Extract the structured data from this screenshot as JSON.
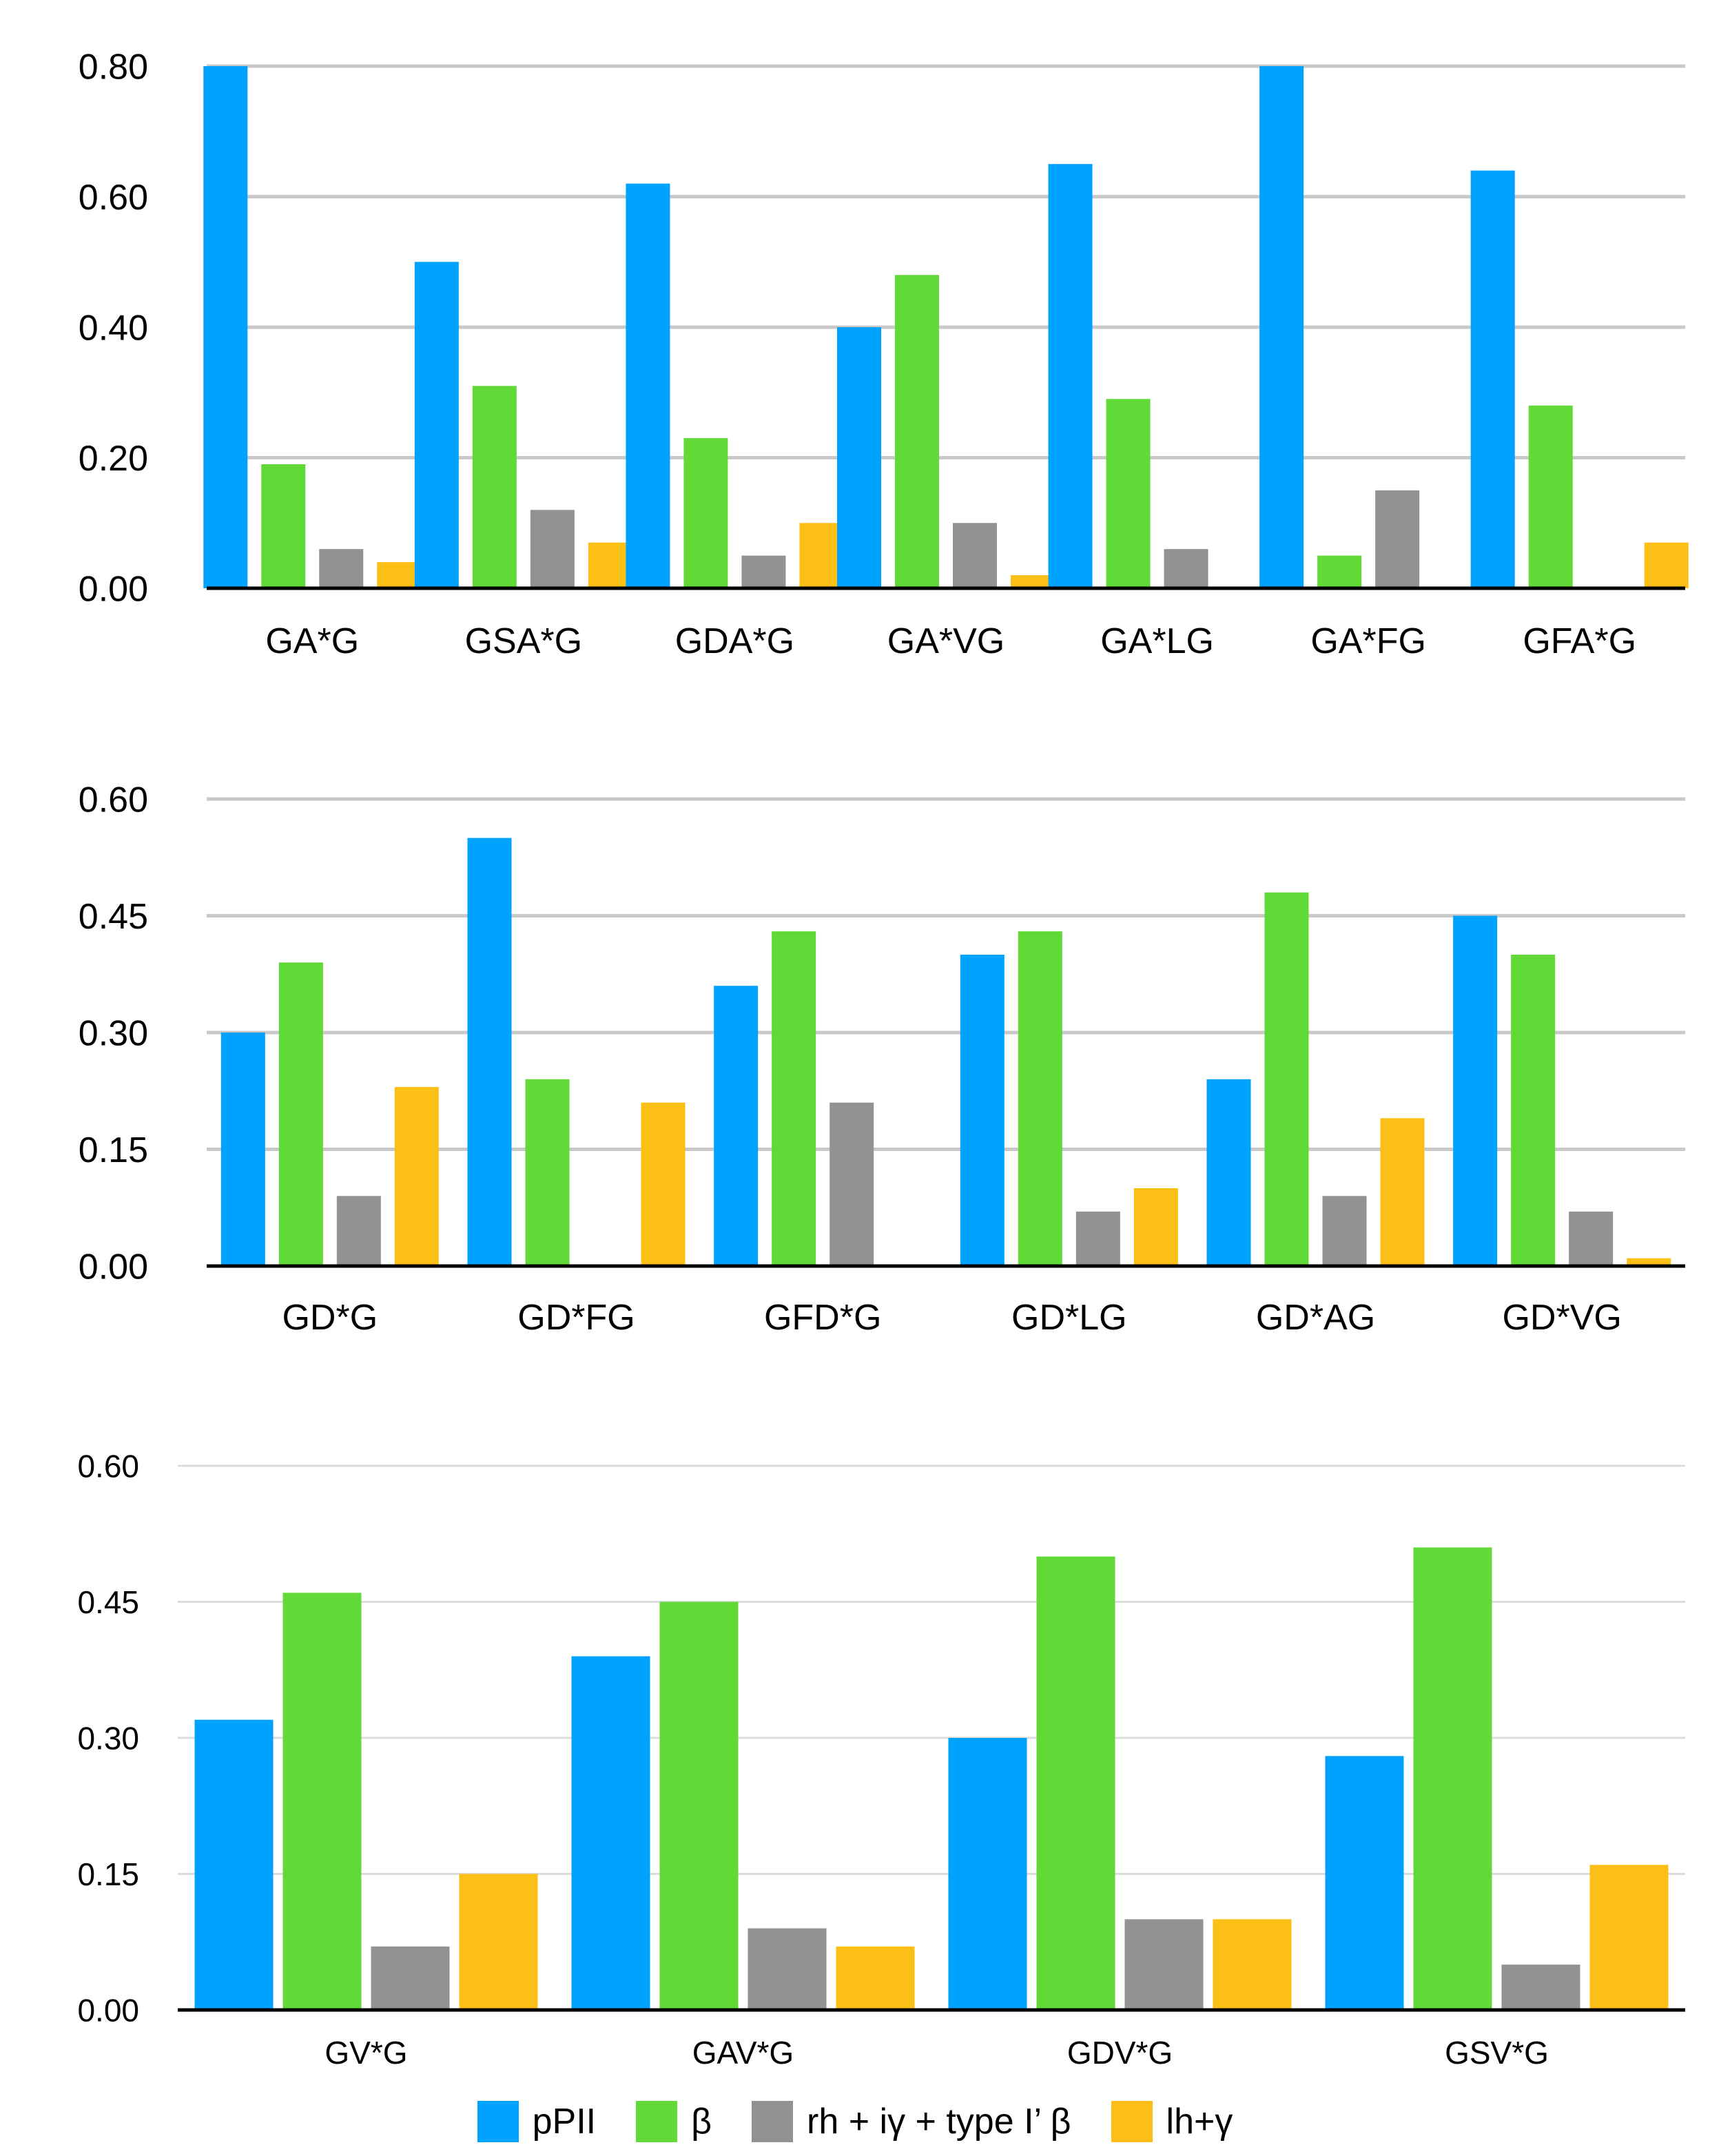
{
  "legend": {
    "placement": "bottom",
    "items": [
      {
        "label": "pPII",
        "color": "#00a2ff"
      },
      {
        "label": "β",
        "color": "#61d936"
      },
      {
        "label": "rh + iγ + type I’ β",
        "color": "#929292"
      },
      {
        "label": "lh+γ",
        "color": "#fcbf16"
      }
    ]
  },
  "chart_data": [
    {
      "type": "bar",
      "title": "",
      "xlabel": "",
      "ylabel": "",
      "ylim": [
        0,
        0.8
      ],
      "yticks": [
        "0.00",
        "0.20",
        "0.40",
        "0.60",
        "0.80"
      ],
      "grid": true,
      "categories": [
        "GA*G",
        "GSA*G",
        "GDA*G",
        "GA*VG",
        "GA*LG",
        "GA*FG",
        "GFA*G"
      ],
      "series": [
        {
          "name": "pPII",
          "values": [
            0.8,
            0.5,
            0.62,
            0.4,
            0.65,
            0.8,
            0.64
          ]
        },
        {
          "name": "β",
          "values": [
            0.19,
            0.31,
            0.23,
            0.48,
            0.29,
            0.05,
            0.28
          ]
        },
        {
          "name": "rh + iγ + type I’ β",
          "values": [
            0.06,
            0.12,
            0.05,
            0.1,
            0.06,
            0.15,
            0
          ]
        },
        {
          "name": "lh+γ",
          "values": [
            0.04,
            0.07,
            0.1,
            0.02,
            0,
            0,
            0.07
          ]
        }
      ]
    },
    {
      "type": "bar",
      "title": "",
      "xlabel": "",
      "ylabel": "",
      "ylim": [
        0,
        0.6
      ],
      "yticks": [
        "0.00",
        "0.15",
        "0.30",
        "0.45",
        "0.60"
      ],
      "grid": true,
      "categories": [
        "GD*G",
        "GD*FG",
        "GFD*G",
        "GD*LG",
        "GD*AG",
        "GD*VG"
      ],
      "series": [
        {
          "name": "pPII",
          "values": [
            0.3,
            0.55,
            0.36,
            0.4,
            0.24,
            0.45
          ]
        },
        {
          "name": "β",
          "values": [
            0.39,
            0.24,
            0.43,
            0.43,
            0.48,
            0.4
          ]
        },
        {
          "name": "rh + iγ + type I’ β",
          "values": [
            0.09,
            0,
            0.21,
            0.07,
            0.09,
            0.07
          ]
        },
        {
          "name": "lh+γ",
          "values": [
            0.23,
            0.21,
            0,
            0.1,
            0.19,
            0.01
          ]
        }
      ]
    },
    {
      "type": "bar",
      "title": "",
      "xlabel": "",
      "ylabel": "",
      "ylim": [
        0,
        0.6
      ],
      "yticks": [
        "0.00",
        "0.15",
        "0.30",
        "0.45",
        "0.60"
      ],
      "grid": true,
      "categories": [
        "GV*G",
        "GAV*G",
        "GDV*G",
        "GSV*G"
      ],
      "series": [
        {
          "name": "pPII",
          "values": [
            0.32,
            0.39,
            0.3,
            0.28
          ]
        },
        {
          "name": "β",
          "values": [
            0.46,
            0.45,
            0.5,
            0.51
          ]
        },
        {
          "name": "rh + iγ + type I’ β",
          "values": [
            0.07,
            0.09,
            0.1,
            0.05
          ]
        },
        {
          "name": "lh+γ",
          "values": [
            0.15,
            0.07,
            0.1,
            0.16
          ]
        }
      ]
    }
  ]
}
